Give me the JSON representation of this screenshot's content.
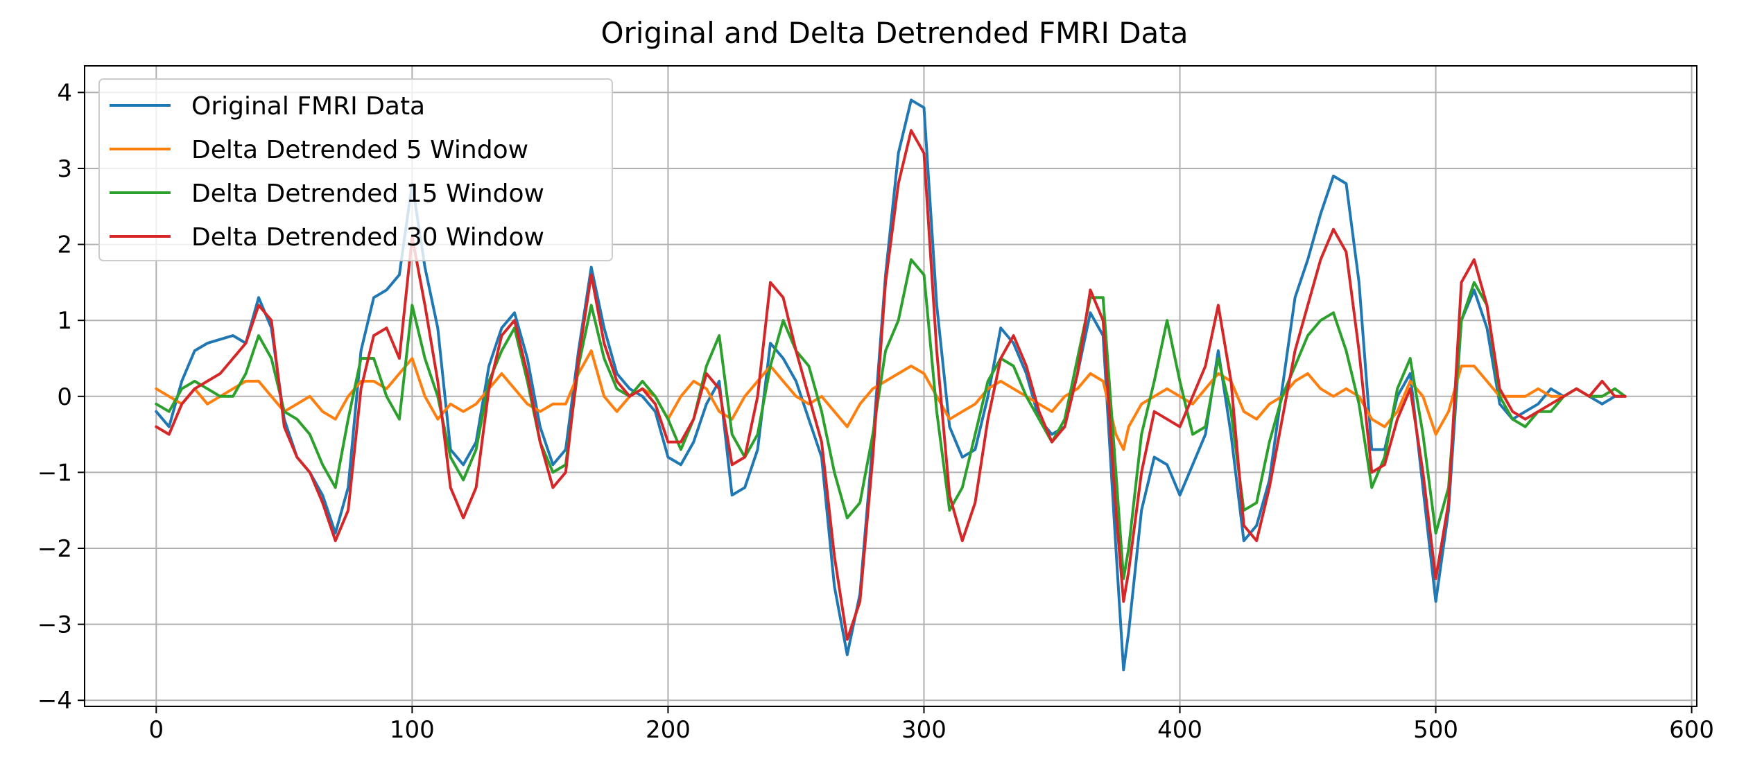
{
  "chart_data": {
    "type": "line",
    "title": "Original and Delta Detrended FMRI Data",
    "xlabel": "",
    "ylabel": "",
    "xlim": [
      -28,
      602
    ],
    "ylim": [
      -4.08,
      4.35
    ],
    "xticks": [
      0,
      100,
      200,
      300,
      400,
      500,
      600
    ],
    "xtick_labels": [
      "0",
      "100",
      "200",
      "300",
      "400",
      "500",
      "600"
    ],
    "yticks": [
      -4,
      -3,
      -2,
      -1,
      0,
      1,
      2,
      3,
      4
    ],
    "ytick_labels": [
      "−4",
      "−3",
      "−2",
      "−1",
      "0",
      "1",
      "2",
      "3",
      "4"
    ],
    "grid": true,
    "legend_position": "top-left",
    "series": [
      {
        "name": "Original FMRI Data",
        "color": "#1f77b4",
        "x": [
          0,
          5,
          10,
          15,
          20,
          25,
          30,
          35,
          40,
          45,
          50,
          55,
          60,
          65,
          70,
          75,
          80,
          85,
          90,
          95,
          100,
          105,
          110,
          115,
          120,
          125,
          130,
          135,
          140,
          145,
          150,
          155,
          160,
          165,
          170,
          175,
          180,
          185,
          190,
          195,
          200,
          205,
          210,
          215,
          220,
          225,
          230,
          235,
          240,
          245,
          250,
          255,
          260,
          265,
          270,
          275,
          280,
          285,
          290,
          295,
          300,
          305,
          310,
          315,
          320,
          325,
          330,
          335,
          340,
          345,
          350,
          355,
          360,
          365,
          370,
          375,
          378,
          380,
          385,
          390,
          395,
          400,
          405,
          410,
          415,
          420,
          425,
          430,
          435,
          440,
          445,
          450,
          455,
          460,
          465,
          470,
          475,
          480,
          485,
          490,
          495,
          500,
          505,
          510,
          515,
          520,
          525,
          530,
          535,
          540,
          545,
          550,
          555,
          560,
          565,
          570,
          574
        ],
        "values": [
          -0.2,
          -0.4,
          0.2,
          0.6,
          0.7,
          0.75,
          0.8,
          0.7,
          1.3,
          0.9,
          -0.3,
          -0.8,
          -1.0,
          -1.3,
          -1.8,
          -1.2,
          0.6,
          1.3,
          1.4,
          1.6,
          2.8,
          1.7,
          0.9,
          -0.7,
          -0.9,
          -0.6,
          0.4,
          0.9,
          1.1,
          0.5,
          -0.4,
          -0.9,
          -0.7,
          0.6,
          1.7,
          0.9,
          0.3,
          0.1,
          0.0,
          -0.2,
          -0.8,
          -0.9,
          -0.6,
          -0.1,
          0.2,
          -1.3,
          -1.2,
          -0.7,
          0.7,
          0.5,
          0.2,
          -0.3,
          -0.8,
          -2.5,
          -3.4,
          -2.6,
          -0.6,
          1.6,
          3.2,
          3.9,
          3.8,
          1.2,
          -0.4,
          -0.8,
          -0.7,
          0.0,
          0.9,
          0.7,
          0.3,
          -0.3,
          -0.5,
          -0.4,
          0.3,
          1.1,
          0.8,
          -2.0,
          -3.6,
          -3.1,
          -1.5,
          -0.8,
          -0.9,
          -1.3,
          -0.9,
          -0.5,
          0.6,
          -0.5,
          -1.9,
          -1.7,
          -1.1,
          0.1,
          1.3,
          1.8,
          2.4,
          2.9,
          2.8,
          1.5,
          -0.7,
          -0.7,
          0.0,
          0.3,
          -1.2,
          -2.7,
          -1.5,
          1.0,
          1.4,
          0.9,
          -0.1,
          -0.3,
          -0.2,
          -0.1,
          0.1,
          0.0,
          0.1,
          0.0,
          -0.1,
          0.0,
          0.0
        ]
      },
      {
        "name": "Delta Detrended 5 Window",
        "color": "#ff7f0e",
        "x": [
          0,
          5,
          10,
          15,
          20,
          25,
          30,
          35,
          40,
          45,
          50,
          55,
          60,
          65,
          70,
          75,
          80,
          85,
          90,
          95,
          100,
          105,
          110,
          115,
          120,
          125,
          130,
          135,
          140,
          145,
          150,
          155,
          160,
          165,
          170,
          175,
          180,
          185,
          190,
          195,
          200,
          205,
          210,
          215,
          220,
          225,
          230,
          235,
          240,
          245,
          250,
          255,
          260,
          265,
          270,
          275,
          280,
          285,
          290,
          295,
          300,
          305,
          310,
          315,
          320,
          325,
          330,
          335,
          340,
          345,
          350,
          355,
          360,
          365,
          370,
          375,
          378,
          380,
          385,
          390,
          395,
          400,
          405,
          410,
          415,
          420,
          425,
          430,
          435,
          440,
          445,
          450,
          455,
          460,
          465,
          470,
          475,
          480,
          485,
          490,
          495,
          500,
          505,
          510,
          515,
          520,
          525,
          530,
          535,
          540,
          545,
          550,
          555,
          560,
          565,
          570,
          574
        ],
        "values": [
          0.1,
          0.0,
          -0.1,
          0.1,
          -0.1,
          0.0,
          0.1,
          0.2,
          0.2,
          0.0,
          -0.2,
          -0.1,
          0.0,
          -0.2,
          -0.3,
          0.0,
          0.2,
          0.2,
          0.1,
          0.3,
          0.5,
          0.0,
          -0.3,
          -0.1,
          -0.2,
          -0.1,
          0.1,
          0.3,
          0.1,
          -0.1,
          -0.2,
          -0.1,
          -0.1,
          0.3,
          0.6,
          0.0,
          -0.2,
          0.0,
          0.1,
          0.0,
          -0.3,
          0.0,
          0.2,
          0.1,
          -0.2,
          -0.3,
          0.0,
          0.2,
          0.4,
          0.2,
          0.0,
          -0.1,
          0.0,
          -0.2,
          -0.4,
          -0.1,
          0.1,
          0.2,
          0.3,
          0.4,
          0.3,
          0.0,
          -0.3,
          -0.2,
          -0.1,
          0.1,
          0.2,
          0.1,
          0.0,
          -0.1,
          -0.2,
          0.0,
          0.1,
          0.3,
          0.2,
          -0.5,
          -0.7,
          -0.4,
          -0.1,
          0.0,
          0.1,
          0.0,
          -0.1,
          0.1,
          0.3,
          0.2,
          -0.2,
          -0.3,
          -0.1,
          0.0,
          0.2,
          0.3,
          0.1,
          0.0,
          0.1,
          0.0,
          -0.3,
          -0.4,
          -0.2,
          0.2,
          0.0,
          -0.5,
          -0.2,
          0.4,
          0.4,
          0.2,
          0.0,
          0.0,
          0.0,
          0.1,
          0.0,
          0.0,
          0.1,
          0.0,
          0.0,
          0.1,
          0.0
        ]
      },
      {
        "name": "Delta Detrended 15 Window",
        "color": "#2ca02c",
        "x": [
          0,
          5,
          10,
          15,
          20,
          25,
          30,
          35,
          40,
          45,
          50,
          55,
          60,
          65,
          70,
          75,
          80,
          85,
          90,
          95,
          100,
          105,
          110,
          115,
          120,
          125,
          130,
          135,
          140,
          145,
          150,
          155,
          160,
          165,
          170,
          175,
          180,
          185,
          190,
          195,
          200,
          205,
          210,
          215,
          220,
          225,
          230,
          235,
          240,
          245,
          250,
          255,
          260,
          265,
          270,
          275,
          280,
          285,
          290,
          295,
          300,
          305,
          310,
          315,
          320,
          325,
          330,
          335,
          340,
          345,
          350,
          355,
          360,
          365,
          370,
          375,
          378,
          380,
          385,
          390,
          395,
          400,
          405,
          410,
          415,
          420,
          425,
          430,
          435,
          440,
          445,
          450,
          455,
          460,
          465,
          470,
          475,
          480,
          485,
          490,
          495,
          500,
          505,
          510,
          515,
          520,
          525,
          530,
          535,
          540,
          545,
          550,
          555,
          560,
          565,
          570,
          574
        ],
        "values": [
          -0.1,
          -0.2,
          0.1,
          0.2,
          0.1,
          0.0,
          0.0,
          0.3,
          0.8,
          0.5,
          -0.2,
          -0.3,
          -0.5,
          -0.9,
          -1.2,
          -0.3,
          0.5,
          0.5,
          0.0,
          -0.3,
          1.2,
          0.5,
          0.0,
          -0.8,
          -1.1,
          -0.7,
          0.2,
          0.6,
          0.9,
          0.2,
          -0.6,
          -1.0,
          -0.9,
          0.4,
          1.2,
          0.5,
          0.1,
          0.0,
          0.2,
          0.0,
          -0.3,
          -0.7,
          -0.3,
          0.4,
          0.8,
          -0.5,
          -0.8,
          -0.5,
          0.4,
          1.0,
          0.6,
          0.4,
          -0.2,
          -1.0,
          -1.6,
          -1.4,
          -0.5,
          0.6,
          1.0,
          1.8,
          1.6,
          -0.2,
          -1.5,
          -1.2,
          -0.5,
          0.2,
          0.5,
          0.4,
          0.0,
          -0.3,
          -0.6,
          -0.3,
          0.5,
          1.3,
          1.3,
          -1.0,
          -2.4,
          -2.0,
          -0.5,
          0.2,
          1.0,
          0.2,
          -0.5,
          -0.4,
          0.5,
          -0.2,
          -1.5,
          -1.4,
          -0.6,
          0.0,
          0.4,
          0.8,
          1.0,
          1.1,
          0.6,
          -0.1,
          -1.2,
          -0.8,
          0.1,
          0.5,
          -0.5,
          -1.8,
          -1.2,
          1.0,
          1.5,
          1.2,
          0.0,
          -0.3,
          -0.4,
          -0.2,
          -0.2,
          0.0,
          0.1,
          0.0,
          0.0,
          0.1,
          0.0
        ]
      },
      {
        "name": "Delta Detrended 30 Window",
        "color": "#d62728",
        "x": [
          0,
          5,
          10,
          15,
          20,
          25,
          30,
          35,
          40,
          45,
          50,
          55,
          60,
          65,
          70,
          75,
          80,
          85,
          90,
          95,
          100,
          105,
          110,
          115,
          120,
          125,
          130,
          135,
          140,
          145,
          150,
          155,
          160,
          165,
          170,
          175,
          180,
          185,
          190,
          195,
          200,
          205,
          210,
          215,
          220,
          225,
          230,
          235,
          240,
          245,
          250,
          255,
          260,
          265,
          270,
          275,
          280,
          285,
          290,
          295,
          300,
          305,
          310,
          315,
          320,
          325,
          330,
          335,
          340,
          345,
          350,
          355,
          360,
          365,
          370,
          375,
          378,
          380,
          385,
          390,
          395,
          400,
          405,
          410,
          415,
          420,
          425,
          430,
          435,
          440,
          445,
          450,
          455,
          460,
          465,
          470,
          475,
          480,
          485,
          490,
          495,
          500,
          505,
          510,
          515,
          520,
          525,
          530,
          535,
          540,
          545,
          550,
          555,
          560,
          565,
          570,
          574
        ],
        "values": [
          -0.4,
          -0.5,
          -0.1,
          0.1,
          0.2,
          0.3,
          0.5,
          0.7,
          1.2,
          1.0,
          -0.4,
          -0.8,
          -1.0,
          -1.4,
          -1.9,
          -1.5,
          0.1,
          0.8,
          0.9,
          0.5,
          2.1,
          1.2,
          0.2,
          -1.2,
          -1.6,
          -1.2,
          0.1,
          0.8,
          1.0,
          0.3,
          -0.6,
          -1.2,
          -1.0,
          0.5,
          1.6,
          0.7,
          0.2,
          0.0,
          0.1,
          -0.1,
          -0.6,
          -0.6,
          -0.3,
          0.3,
          0.1,
          -0.9,
          -0.8,
          0.0,
          1.5,
          1.3,
          0.6,
          0.0,
          -0.6,
          -2.1,
          -3.2,
          -2.7,
          -0.8,
          1.5,
          2.8,
          3.5,
          3.2,
          0.6,
          -1.3,
          -1.9,
          -1.4,
          -0.3,
          0.5,
          0.8,
          0.4,
          -0.2,
          -0.6,
          -0.4,
          0.3,
          1.4,
          1.0,
          -1.5,
          -2.7,
          -2.3,
          -1.0,
          -0.2,
          -0.3,
          -0.4,
          0.0,
          0.4,
          1.2,
          0.2,
          -1.7,
          -1.9,
          -1.2,
          -0.3,
          0.6,
          1.2,
          1.8,
          2.2,
          1.9,
          0.6,
          -1.0,
          -0.9,
          -0.3,
          0.1,
          -1.0,
          -2.4,
          -1.4,
          1.5,
          1.8,
          1.2,
          0.1,
          -0.2,
          -0.3,
          -0.2,
          -0.1,
          0.0,
          0.1,
          0.0,
          0.2,
          0.0,
          0.0
        ]
      }
    ]
  }
}
